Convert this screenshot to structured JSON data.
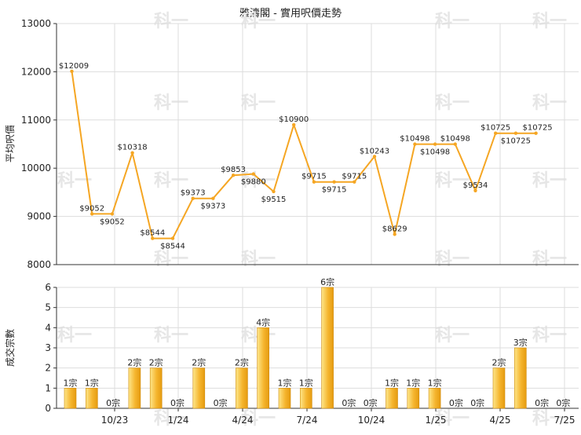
{
  "chart_title": "雅濤閣 - 實用呎價走勢",
  "watermark": "科一",
  "colors": {
    "line": "#f5a623",
    "bar_light": "#fde68a",
    "bar_dark": "#e59b10",
    "grid": "#dddddd",
    "axis": "#333333"
  },
  "chart_data": [
    {
      "type": "line",
      "ylabel": "平均呎價",
      "ylim": [
        8000,
        13000
      ],
      "yticks": [
        8000,
        9000,
        10000,
        11000,
        12000,
        13000
      ],
      "x": [
        1,
        2,
        3,
        4,
        5,
        6,
        7,
        8,
        9,
        10,
        11,
        12,
        13,
        14,
        15,
        16,
        17,
        18,
        19,
        20,
        21,
        22,
        23,
        24,
        25,
        26
      ],
      "series": [
        {
          "values": [
            12009,
            9052,
            9052,
            10318,
            8544,
            8544,
            9373,
            9373,
            9853,
            9880,
            9515,
            10900,
            9715,
            9715,
            9715,
            10243,
            8629,
            10498,
            10498,
            10498,
            9534,
            10725,
            10725,
            10725,
            null,
            null
          ],
          "labels": [
            "$12009",
            "$9052",
            "$9052",
            "$10318",
            "$8544",
            "$8544",
            "$9373",
            "$9373",
            "$9853",
            "$9880",
            "$9515",
            "$10900",
            "$9715",
            "$9715",
            "$9715",
            "$10243",
            "$8629",
            "$10498",
            "$10498",
            "$10498",
            "$9534",
            "$10725",
            "$10725",
            "$10725",
            "",
            ""
          ]
        }
      ]
    },
    {
      "type": "bar",
      "ylabel": "成交宗數",
      "ylim": [
        0,
        6
      ],
      "yticks": [
        0,
        1,
        2,
        3,
        4,
        5,
        6
      ],
      "xticks": [
        "10/23",
        "1/24",
        "4/24",
        "7/24",
        "10/24",
        "1/25",
        "4/25",
        "7/25"
      ],
      "values": [
        1,
        1,
        0,
        2,
        2,
        0,
        2,
        0,
        2,
        4,
        1,
        1,
        6,
        0,
        0,
        1,
        1,
        1,
        0,
        0,
        2,
        3,
        0,
        0
      ],
      "labels": [
        "1宗",
        "1宗",
        "0宗",
        "2宗",
        "2宗",
        "0宗",
        "2宗",
        "0宗",
        "2宗",
        "4宗",
        "1宗",
        "1宗",
        "6宗",
        "0宗",
        "0宗",
        "1宗",
        "1宗",
        "1宗",
        "0宗",
        "0宗",
        "2宗",
        "3宗",
        "0宗",
        "0宗"
      ]
    }
  ]
}
